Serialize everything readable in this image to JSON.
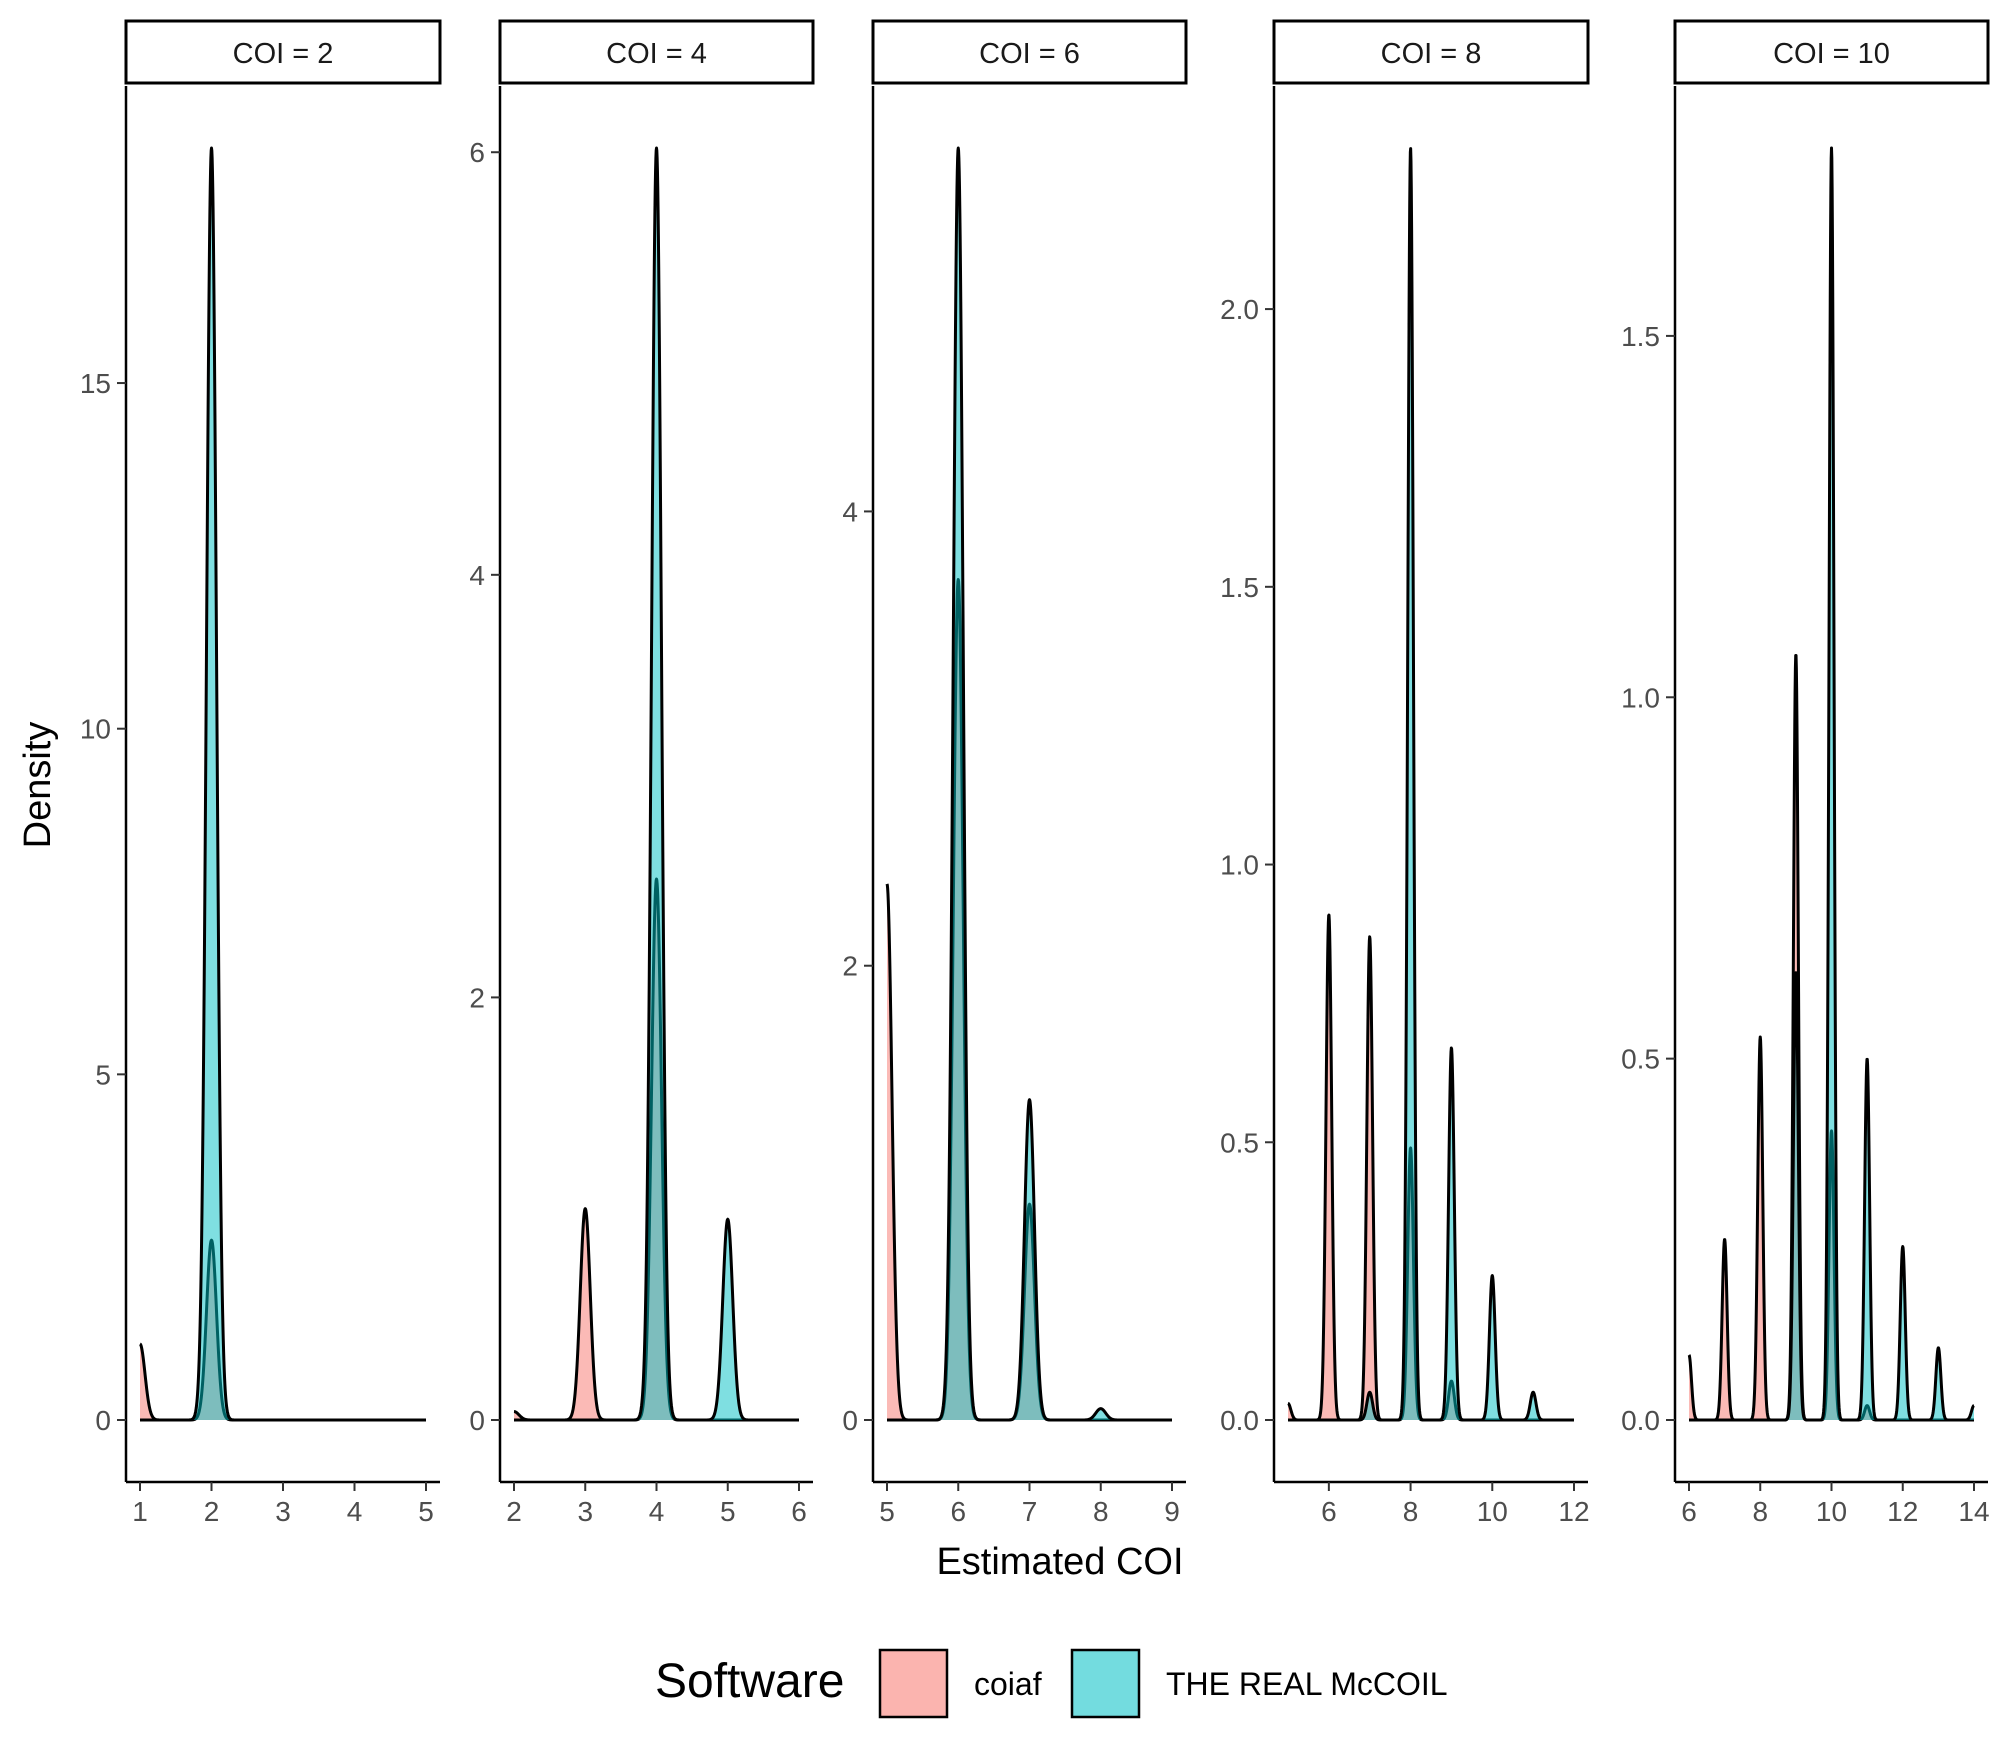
{
  "chart_data": {
    "type": "area",
    "subtype": "faceted density plot",
    "ylabel": "Density",
    "xlabel": "Estimated COI",
    "legend": {
      "title": "Software",
      "placement": "bottom",
      "entries": [
        {
          "name": "coiaf",
          "color": "#F8766D"
        },
        {
          "name": "THE REAL McCOIL",
          "color": "#00BFC4"
        }
      ]
    },
    "series_colors": {
      "coiaf": "#F8766D",
      "THE REAL McCOIL": "#00BFC4"
    },
    "bandwidth": 0.07,
    "facets": [
      {
        "label": "COI = 2",
        "xlim": [
          1,
          5
        ],
        "ylim": [
          0,
          18.4
        ],
        "xticks": [
          1,
          2,
          3,
          4,
          5
        ],
        "yticks": [
          0,
          5,
          10,
          15
        ],
        "series": [
          {
            "name": "coiaf",
            "peaks": [
              [
                1,
                1.1
              ],
              [
                2,
                2.6
              ]
            ]
          },
          {
            "name": "THE REAL McCOIL",
            "peaks": [
              [
                2,
                18.4
              ]
            ]
          }
        ]
      },
      {
        "label": "COI = 4",
        "xlim": [
          2,
          6
        ],
        "ylim": [
          0,
          6.02
        ],
        "xticks": [
          2,
          3,
          4,
          5,
          6
        ],
        "yticks": [
          0,
          2,
          4,
          6
        ],
        "series": [
          {
            "name": "coiaf",
            "peaks": [
              [
                2,
                0.04
              ],
              [
                3,
                1.0
              ],
              [
                4,
                2.56
              ]
            ]
          },
          {
            "name": "THE REAL McCOIL",
            "peaks": [
              [
                4,
                6.02
              ],
              [
                5,
                0.95
              ]
            ]
          }
        ]
      },
      {
        "label": "COI = 6",
        "xlim": [
          5,
          9
        ],
        "ylim": [
          0,
          5.6
        ],
        "xticks": [
          5,
          6,
          7,
          8,
          9
        ],
        "yticks": [
          0,
          2,
          4
        ],
        "series": [
          {
            "name": "coiaf",
            "peaks": [
              [
                5,
                2.36
              ],
              [
                6,
                3.7
              ],
              [
                7,
                0.95
              ]
            ]
          },
          {
            "name": "THE REAL McCOIL",
            "peaks": [
              [
                6,
                5.6
              ],
              [
                7,
                1.41
              ],
              [
                8,
                0.05
              ]
            ]
          }
        ]
      },
      {
        "label": "COI = 8",
        "xlim": [
          5,
          12
        ],
        "ylim": [
          0,
          2.29
        ],
        "xticks": [
          6,
          8,
          10,
          12
        ],
        "yticks": [
          0.0,
          0.5,
          1.0,
          1.5,
          2.0
        ],
        "series": [
          {
            "name": "coiaf",
            "peaks": [
              [
                5,
                0.03
              ],
              [
                6,
                0.91
              ],
              [
                7,
                0.87
              ],
              [
                8,
                0.49
              ],
              [
                9,
                0.07
              ]
            ]
          },
          {
            "name": "THE REAL McCOIL",
            "peaks": [
              [
                7,
                0.05
              ],
              [
                8,
                2.29
              ],
              [
                9,
                0.67
              ],
              [
                10,
                0.26
              ],
              [
                11,
                0.05
              ]
            ]
          }
        ]
      },
      {
        "label": "COI = 10",
        "xlim": [
          6,
          14
        ],
        "ylim": [
          0,
          1.76
        ],
        "xticks": [
          6,
          8,
          10,
          12,
          14
        ],
        "yticks": [
          0.0,
          0.5,
          1.0,
          1.5
        ],
        "series": [
          {
            "name": "coiaf",
            "peaks": [
              [
                6,
                0.09
              ],
              [
                7,
                0.25
              ],
              [
                8,
                0.53
              ],
              [
                9,
                1.06
              ],
              [
                10,
                0.4
              ],
              [
                11,
                0.02
              ]
            ]
          },
          {
            "name": "THE REAL McCOIL",
            "peaks": [
              [
                9,
                0.62
              ],
              [
                10,
                1.76
              ],
              [
                11,
                0.5
              ],
              [
                12,
                0.24
              ],
              [
                13,
                0.1
              ],
              [
                14,
                0.02
              ]
            ]
          }
        ]
      }
    ]
  }
}
